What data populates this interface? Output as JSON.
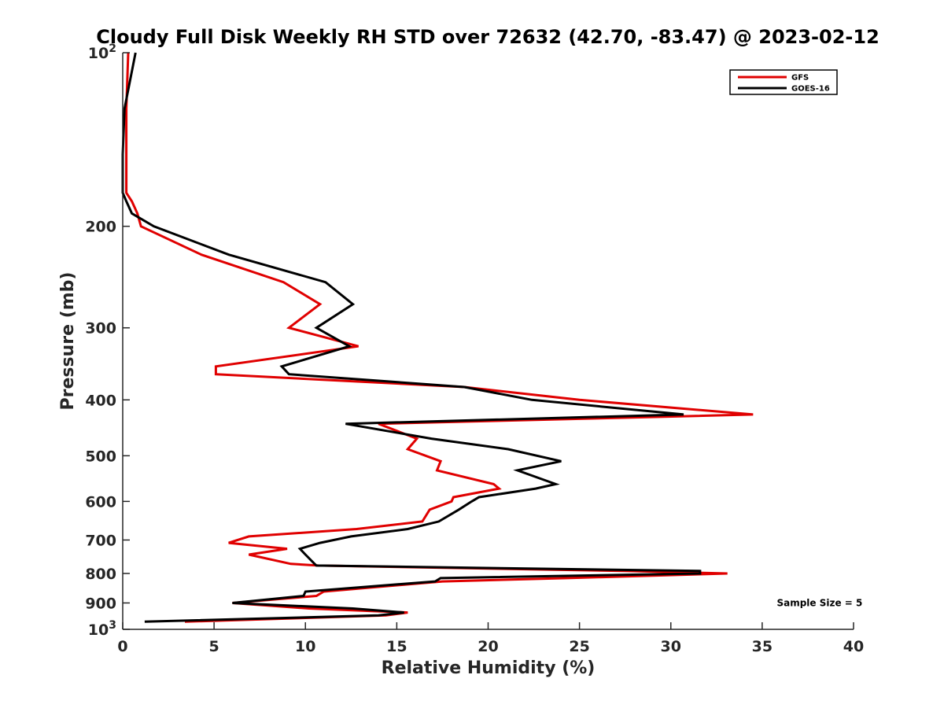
{
  "chart_data": {
    "type": "line",
    "title": "Cloudy Full Disk Weekly RH STD over 72632 (42.70, -83.47) @ 2023-02-12",
    "xlabel": "Relative Humidity (%)",
    "ylabel": "Pressure (mb)",
    "xlim": [
      0,
      40
    ],
    "ylim": [
      100,
      1000
    ],
    "y_scale": "log",
    "y_reversed": true,
    "x_ticks": [
      0,
      5,
      10,
      15,
      20,
      25,
      30,
      35,
      40
    ],
    "y_ticks": [
      {
        "value": 100,
        "base": "10",
        "exp": "2"
      },
      {
        "value": 200,
        "label": "200"
      },
      {
        "value": 300,
        "label": "300"
      },
      {
        "value": 400,
        "label": "400"
      },
      {
        "value": 500,
        "label": "500"
      },
      {
        "value": 600,
        "label": "600"
      },
      {
        "value": 700,
        "label": "700"
      },
      {
        "value": 800,
        "label": "800"
      },
      {
        "value": 900,
        "label": "900"
      },
      {
        "value": 1000,
        "base": "10",
        "exp": "3"
      }
    ],
    "legend_position": "top-right",
    "grid": false,
    "series": [
      {
        "name": "GFS",
        "color": "#e00000",
        "points": [
          [
            0.3,
            100
          ],
          [
            0.2,
            125
          ],
          [
            0.2,
            150
          ],
          [
            0.2,
            175
          ],
          [
            0.5,
            181
          ],
          [
            0.8,
            190
          ],
          [
            1.0,
            200
          ],
          [
            4.3,
            224
          ],
          [
            8.8,
            250
          ],
          [
            10.8,
            273
          ],
          [
            9.1,
            300
          ],
          [
            12.9,
            323
          ],
          [
            5.1,
            350
          ],
          [
            5.1,
            361
          ],
          [
            18.7,
            380
          ],
          [
            25.0,
            400
          ],
          [
            34.5,
            424
          ],
          [
            14.0,
            440
          ],
          [
            16.1,
            467
          ],
          [
            15.6,
            487
          ],
          [
            17.4,
            511
          ],
          [
            17.2,
            530
          ],
          [
            20.3,
            560
          ],
          [
            20.6,
            570
          ],
          [
            18.1,
            590
          ],
          [
            18.0,
            600
          ],
          [
            16.8,
            620
          ],
          [
            16.4,
            650
          ],
          [
            12.8,
            670
          ],
          [
            6.9,
            690
          ],
          [
            5.8,
            708
          ],
          [
            9.0,
            725
          ],
          [
            6.9,
            742
          ],
          [
            9.2,
            770
          ],
          [
            10.7,
            775
          ],
          [
            27.4,
            792
          ],
          [
            33.1,
            800
          ],
          [
            24.3,
            815
          ],
          [
            17.5,
            826
          ],
          [
            11.0,
            860
          ],
          [
            10.6,
            875
          ],
          [
            6.0,
            900
          ],
          [
            10.2,
            920
          ],
          [
            15.6,
            935
          ],
          [
            14.4,
            946
          ],
          [
            3.4,
            970
          ]
        ]
      },
      {
        "name": "GOES-16",
        "color": "#000000",
        "points": [
          [
            0.7,
            100
          ],
          [
            0.1,
            125
          ],
          [
            0.0,
            150
          ],
          [
            0.0,
            175
          ],
          [
            0.2,
            181
          ],
          [
            0.5,
            190
          ],
          [
            1.7,
            200
          ],
          [
            5.8,
            224
          ],
          [
            11.1,
            250
          ],
          [
            12.6,
            273
          ],
          [
            10.6,
            300
          ],
          [
            12.4,
            323
          ],
          [
            8.7,
            350
          ],
          [
            9.1,
            361
          ],
          [
            18.7,
            380
          ],
          [
            22.4,
            400
          ],
          [
            30.7,
            424
          ],
          [
            12.2,
            440
          ],
          [
            16.9,
            467
          ],
          [
            21.1,
            487
          ],
          [
            24.0,
            511
          ],
          [
            21.6,
            530
          ],
          [
            23.7,
            560
          ],
          [
            22.6,
            570
          ],
          [
            19.5,
            590
          ],
          [
            19.1,
            600
          ],
          [
            18.4,
            620
          ],
          [
            17.3,
            650
          ],
          [
            15.6,
            670
          ],
          [
            12.5,
            690
          ],
          [
            10.8,
            708
          ],
          [
            9.7,
            725
          ],
          [
            10.0,
            742
          ],
          [
            10.5,
            770
          ],
          [
            10.6,
            775
          ],
          [
            31.6,
            792
          ],
          [
            31.6,
            800
          ],
          [
            17.4,
            815
          ],
          [
            17.1,
            826
          ],
          [
            10.0,
            860
          ],
          [
            9.9,
            875
          ],
          [
            6.0,
            900
          ],
          [
            12.6,
            920
          ],
          [
            15.4,
            935
          ],
          [
            14.0,
            946
          ],
          [
            1.2,
            970
          ]
        ]
      }
    ],
    "annotations": [
      {
        "text": "Sample Size = 5",
        "x": 35.8,
        "y": 900
      }
    ]
  }
}
